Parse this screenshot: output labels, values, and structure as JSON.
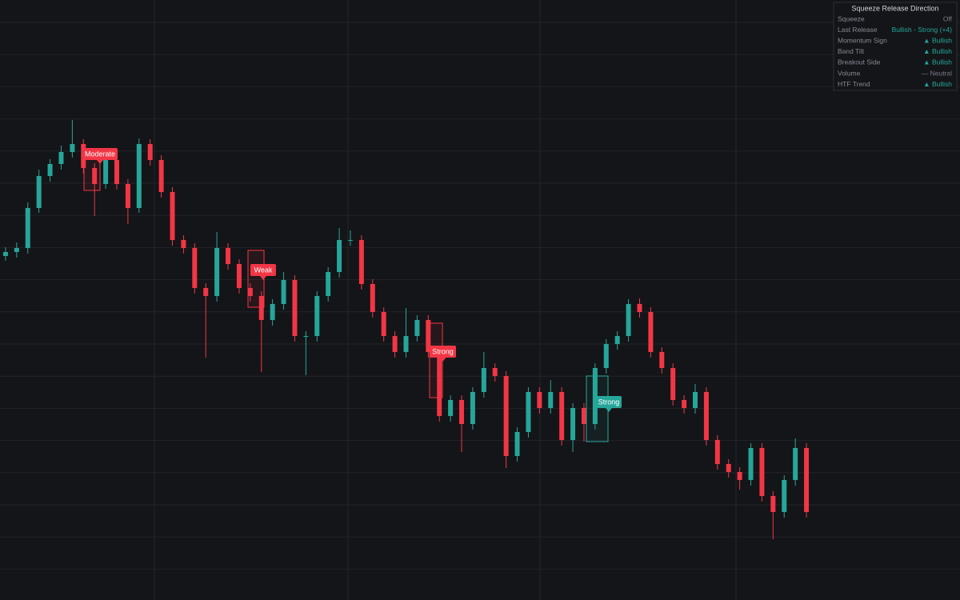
{
  "chart_data": {
    "type": "candlestick",
    "ylim": [
      0,
      750
    ],
    "open": [
      430,
      435,
      440,
      490,
      530,
      545,
      560,
      570,
      540,
      520,
      550,
      520,
      490,
      570,
      550,
      510,
      450,
      440,
      390,
      380,
      440,
      420,
      390,
      380,
      350,
      370,
      400,
      330,
      330,
      380,
      410,
      450,
      450,
      395,
      360,
      330,
      310,
      330,
      350,
      310,
      230,
      250,
      220,
      260,
      290,
      280,
      180,
      210,
      260,
      240,
      260,
      200,
      240,
      220,
      290,
      320,
      330,
      370,
      360,
      310,
      290,
      250,
      240,
      260,
      200,
      170,
      160,
      150,
      190,
      130,
      110,
      150,
      190
    ],
    "high": [
      441,
      447,
      497,
      538,
      551,
      568,
      600,
      576,
      546,
      557,
      556,
      526,
      577,
      576,
      556,
      516,
      456,
      446,
      396,
      460,
      446,
      426,
      396,
      386,
      376,
      410,
      406,
      336,
      386,
      416,
      465,
      462,
      456,
      401,
      366,
      336,
      365,
      356,
      356,
      316,
      256,
      256,
      266,
      310,
      296,
      286,
      216,
      266,
      266,
      275,
      266,
      246,
      246,
      296,
      326,
      336,
      376,
      377,
      366,
      316,
      296,
      256,
      270,
      266,
      206,
      176,
      166,
      196,
      196,
      136,
      156,
      202,
      196
    ],
    "low": [
      424,
      428,
      433,
      484,
      523,
      538,
      553,
      533,
      480,
      514,
      513,
      470,
      484,
      543,
      503,
      443,
      433,
      383,
      303,
      373,
      413,
      383,
      373,
      285,
      343,
      363,
      323,
      281,
      323,
      373,
      403,
      443,
      388,
      353,
      323,
      303,
      303,
      323,
      303,
      223,
      223,
      185,
      213,
      253,
      273,
      165,
      173,
      203,
      233,
      233,
      193,
      185,
      198,
      213,
      283,
      313,
      323,
      353,
      303,
      283,
      243,
      233,
      233,
      193,
      163,
      153,
      138,
      143,
      123,
      76,
      103,
      143,
      103
    ],
    "close": [
      435,
      440,
      490,
      530,
      545,
      560,
      570,
      540,
      520,
      550,
      520,
      490,
      570,
      550,
      510,
      450,
      440,
      390,
      380,
      440,
      420,
      390,
      380,
      350,
      370,
      400,
      330,
      330,
      380,
      410,
      450,
      450,
      395,
      360,
      330,
      310,
      330,
      350,
      310,
      230,
      250,
      220,
      260,
      290,
      280,
      180,
      210,
      260,
      240,
      260,
      200,
      240,
      220,
      290,
      320,
      330,
      370,
      360,
      310,
      290,
      250,
      240,
      260,
      200,
      170,
      160,
      150,
      190,
      130,
      110,
      150,
      190,
      110
    ],
    "up_color": "#26a69a",
    "down_color": "#f23645",
    "signals": [
      {
        "label": "Moderate",
        "color": "#f23645"
      },
      {
        "label": "Weak",
        "color": "#f23645"
      },
      {
        "label": "Strong",
        "color": "#f23645"
      },
      {
        "label": "Strong",
        "color": "#26a69a"
      }
    ]
  },
  "panel": {
    "title": "Squeeze Release Direction",
    "rows": [
      {
        "label": "Squeeze",
        "value": "Off",
        "color": "#787b86"
      },
      {
        "label": "Last Release",
        "value": "Bullish - Strong (+4)",
        "color": "#26a69a"
      },
      {
        "label": "Momentum Sign",
        "value": "▲ Bullish",
        "color": "#26a69a"
      },
      {
        "label": "Band Tilt",
        "value": "▲ Bullish",
        "color": "#26a69a"
      },
      {
        "label": "Breakout Side",
        "value": "▲ Bullish",
        "color": "#26a69a"
      },
      {
        "label": "Volume",
        "value": "— Neutral",
        "color": "#787b86"
      },
      {
        "label": "HTF Trend",
        "value": "▲ Bullish",
        "color": "#26a69a"
      }
    ]
  }
}
